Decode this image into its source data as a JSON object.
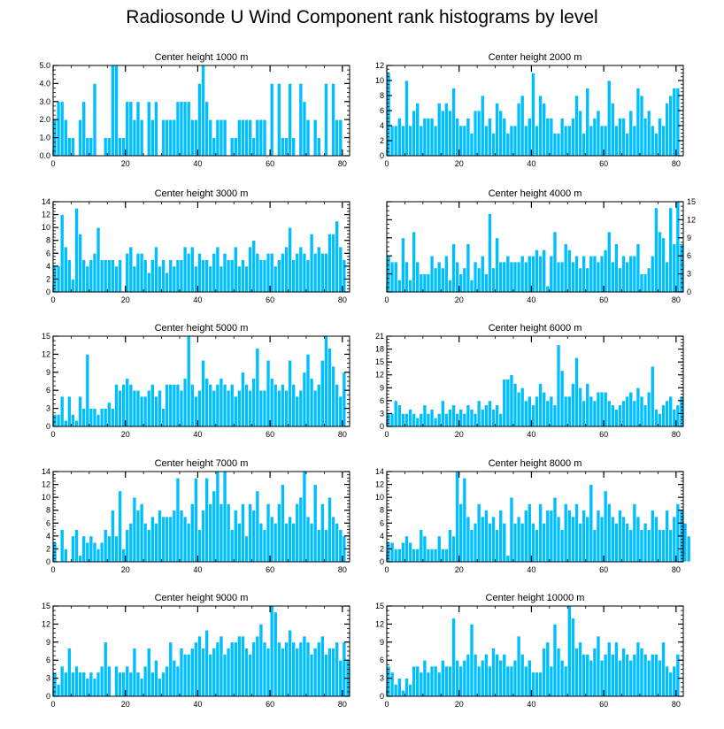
{
  "title": "Radiosonde U Wind Component rank histograms by level",
  "colors": {
    "bar": "#00bfff",
    "bar_edge": "#ffffff",
    "axis": "#000000"
  },
  "chart_data": [
    {
      "type": "bar",
      "title": "Center height 1000 m",
      "xlim": [
        0,
        82
      ],
      "ylim": [
        0,
        5
      ],
      "xticks": [
        0,
        20,
        40,
        60,
        80
      ],
      "xtick_labels": [
        "0",
        "20",
        "40",
        "60",
        "80"
      ],
      "yticks": [
        0,
        1,
        2,
        3,
        4,
        5
      ],
      "ytick_labels": [
        "0.0",
        "1.0",
        "2.0",
        "3.0",
        "4.0",
        "5.0"
      ],
      "ylabel_side": "left",
      "values": [
        2,
        3,
        3,
        2,
        1,
        1,
        0,
        2,
        3,
        1,
        1,
        4,
        0,
        0,
        1,
        1,
        5,
        5,
        1,
        1,
        3,
        3,
        2,
        3,
        2,
        0,
        3,
        2,
        3,
        0,
        2,
        2,
        2,
        2,
        3,
        3,
        3,
        3,
        2,
        2,
        4,
        5,
        3,
        2,
        1,
        2,
        2,
        2,
        0,
        1,
        1,
        2,
        2,
        2,
        2,
        1,
        2,
        2,
        2,
        0,
        4,
        0,
        4,
        1,
        1,
        4,
        1,
        0,
        4,
        3,
        2,
        0,
        2,
        1,
        0,
        4,
        0,
        4,
        2,
        2
      ]
    },
    {
      "type": "bar",
      "title": "Center height 2000 m",
      "xlim": [
        0,
        82
      ],
      "ylim": [
        0,
        12
      ],
      "xticks": [
        0,
        20,
        40,
        60,
        80
      ],
      "xtick_labels": [
        "0",
        "20",
        "40",
        "60",
        "80"
      ],
      "yticks": [
        0,
        2,
        4,
        6,
        8,
        10,
        12
      ],
      "ytick_labels": [
        "0",
        "2",
        "4",
        "6",
        "8",
        "10",
        "12"
      ],
      "ylabel_side": "left",
      "values": [
        11,
        4,
        4,
        5,
        4,
        10,
        4,
        6,
        7,
        4,
        5,
        5,
        5,
        4,
        7,
        6,
        7,
        6,
        9,
        5,
        4,
        4,
        5,
        3,
        6,
        6,
        8,
        4,
        5,
        3,
        7,
        6,
        5,
        3,
        4,
        4,
        7,
        8,
        4,
        5,
        11,
        4,
        8,
        7,
        5,
        5,
        3,
        3,
        5,
        4,
        4,
        5,
        8,
        6,
        3,
        9,
        4,
        5,
        6,
        4,
        4,
        10,
        7,
        4,
        5,
        5,
        3,
        6,
        4,
        9,
        8,
        5,
        6,
        4,
        3,
        5,
        4,
        7,
        8,
        9,
        9
      ]
    },
    {
      "type": "bar",
      "title": "Center height 3000 m",
      "xlim": [
        0,
        82
      ],
      "ylim": [
        0,
        14
      ],
      "xticks": [
        0,
        20,
        40,
        60,
        80
      ],
      "xtick_labels": [
        "0",
        "20",
        "40",
        "60",
        "80"
      ],
      "yticks": [
        0,
        2,
        4,
        6,
        8,
        10,
        12,
        14
      ],
      "ytick_labels": [
        "0",
        "2",
        "4",
        "6",
        "8",
        "10",
        "12",
        "14"
      ],
      "ylabel_side": "left",
      "values": [
        4,
        4,
        12,
        7,
        5,
        2,
        13,
        9,
        5,
        4,
        5,
        6,
        10,
        5,
        5,
        5,
        5,
        4,
        5,
        0,
        6,
        7,
        4,
        6,
        6,
        5,
        3,
        5,
        7,
        4,
        5,
        3,
        5,
        4,
        5,
        5,
        7,
        6,
        7,
        4,
        6,
        5,
        5,
        4,
        6,
        7,
        4,
        6,
        5,
        5,
        7,
        4,
        5,
        4,
        7,
        8,
        6,
        5,
        5,
        6,
        6,
        4,
        5,
        6,
        7,
        10,
        5,
        6,
        7,
        6,
        5,
        9,
        6,
        7,
        6,
        6,
        9,
        9,
        11,
        7,
        5
      ]
    },
    {
      "type": "bar",
      "title": "Center height 4000 m",
      "xlim": [
        0,
        82
      ],
      "ylim": [
        0,
        15
      ],
      "xticks": [
        0,
        20,
        40,
        60,
        80
      ],
      "xtick_labels": [
        "0",
        "20",
        "40",
        "60",
        "80"
      ],
      "yticks": [
        0,
        3,
        6,
        9,
        12,
        15
      ],
      "ytick_labels": [
        "0",
        "3",
        "6",
        "9",
        "12",
        "15"
      ],
      "ylabel_side": "right",
      "values": [
        6,
        5,
        5,
        2,
        9,
        5,
        2,
        10,
        5,
        3,
        3,
        3,
        6,
        4,
        5,
        4,
        6,
        2,
        8,
        5,
        3,
        4,
        8,
        2,
        5,
        4,
        6,
        3,
        13,
        4,
        9,
        5,
        5,
        6,
        5,
        5,
        5,
        6,
        5,
        6,
        6,
        7,
        6,
        7,
        1,
        6,
        10,
        5,
        5,
        8,
        7,
        5,
        6,
        4,
        6,
        4,
        6,
        6,
        5,
        6,
        7,
        10,
        5,
        8,
        4,
        6,
        5,
        6,
        6,
        8,
        3,
        3,
        4,
        6,
        14,
        10,
        9,
        5,
        14,
        8,
        15,
        8
      ]
    },
    {
      "type": "bar",
      "title": "Center height 5000 m",
      "xlim": [
        0,
        82
      ],
      "ylim": [
        0,
        15
      ],
      "xticks": [
        0,
        20,
        40,
        60,
        80
      ],
      "xtick_labels": [
        "0",
        "20",
        "40",
        "60",
        "80"
      ],
      "yticks": [
        0,
        3,
        6,
        9,
        12,
        15
      ],
      "ytick_labels": [
        "0",
        "3",
        "6",
        "9",
        "12",
        "15"
      ],
      "ylabel_side": "left",
      "values": [
        2,
        2,
        5,
        1,
        5,
        2,
        1,
        5,
        3,
        12,
        3,
        3,
        2,
        3,
        3,
        4,
        3,
        7,
        6,
        7,
        8,
        7,
        6,
        6,
        5,
        5,
        6,
        7,
        5,
        6,
        3,
        7,
        7,
        7,
        7,
        6,
        8,
        15,
        7,
        5,
        6,
        11,
        8,
        7,
        6,
        7,
        8,
        7,
        6,
        7,
        5,
        6,
        9,
        7,
        6,
        8,
        13,
        6,
        6,
        11,
        8,
        7,
        6,
        7,
        6,
        11,
        7,
        5,
        6,
        9,
        12,
        8,
        6,
        7,
        11,
        15,
        13,
        10,
        7,
        5,
        9
      ]
    },
    {
      "type": "bar",
      "title": "Center height 6000 m",
      "xlim": [
        0,
        82
      ],
      "ylim": [
        0,
        21
      ],
      "xticks": [
        0,
        20,
        40,
        60,
        80
      ],
      "xtick_labels": [
        "0",
        "20",
        "40",
        "60",
        "80"
      ],
      "yticks": [
        0,
        3,
        6,
        9,
        12,
        15,
        18,
        21
      ],
      "ytick_labels": [
        "0",
        "3",
        "6",
        "9",
        "12",
        "15",
        "18",
        "21"
      ],
      "ylabel_side": "left",
      "values": [
        3,
        3,
        6,
        5,
        3,
        3,
        4,
        3,
        2,
        3,
        5,
        3,
        4,
        2,
        3,
        6,
        3,
        4,
        5,
        3,
        4,
        3,
        5,
        4,
        3,
        6,
        4,
        5,
        6,
        4,
        5,
        3,
        11,
        11,
        12,
        10,
        8,
        9,
        6,
        7,
        5,
        7,
        10,
        8,
        6,
        7,
        5,
        19,
        13,
        7,
        7,
        10,
        16,
        9,
        6,
        10,
        7,
        6,
        8,
        8,
        8,
        6,
        5,
        4,
        5,
        6,
        7,
        8,
        6,
        9,
        7,
        5,
        8,
        14,
        4,
        3,
        5,
        6,
        7,
        4,
        5,
        7
      ]
    },
    {
      "type": "bar",
      "title": "Center height 7000 m",
      "xlim": [
        0,
        82
      ],
      "ylim": [
        0,
        14
      ],
      "xticks": [
        0,
        20,
        40,
        60,
        80
      ],
      "xtick_labels": [
        "0",
        "20",
        "40",
        "60",
        "80"
      ],
      "yticks": [
        0,
        2,
        4,
        6,
        8,
        10,
        12,
        14
      ],
      "ytick_labels": [
        "0",
        "2",
        "4",
        "6",
        "8",
        "10",
        "12",
        "14"
      ],
      "ylabel_side": "left",
      "values": [
        3,
        0,
        5,
        2,
        0,
        4,
        5,
        1,
        4,
        3,
        4,
        3,
        2,
        3,
        5,
        4,
        8,
        4,
        11,
        2,
        5,
        6,
        10,
        8,
        9,
        6,
        5,
        7,
        6,
        8,
        7,
        7,
        7,
        8,
        13,
        8,
        7,
        6,
        9,
        13,
        5,
        8,
        13,
        9,
        11,
        14,
        9,
        14,
        9,
        5,
        8,
        6,
        9,
        4,
        9,
        8,
        11,
        6,
        5,
        9,
        7,
        6,
        9,
        12,
        6,
        7,
        6,
        9,
        10,
        14,
        7,
        6,
        12,
        5,
        9,
        5,
        10,
        7,
        6,
        5,
        4
      ]
    },
    {
      "type": "bar",
      "title": "Center height 8000 m",
      "xlim": [
        0,
        82
      ],
      "ylim": [
        0,
        14
      ],
      "xticks": [
        0,
        20,
        40,
        60,
        80
      ],
      "xtick_labels": [
        "0",
        "20",
        "40",
        "60",
        "80"
      ],
      "yticks": [
        0,
        2,
        4,
        6,
        8,
        10,
        12,
        14
      ],
      "ytick_labels": [
        "0",
        "2",
        "4",
        "6",
        "8",
        "10",
        "12",
        "14"
      ],
      "ylabel_side": "left",
      "values": [
        3,
        3,
        2,
        2,
        3,
        4,
        3,
        2,
        2,
        5,
        4,
        2,
        2,
        2,
        4,
        2,
        2,
        5,
        4,
        14,
        9,
        13,
        7,
        5,
        6,
        9,
        7,
        8,
        6,
        7,
        5,
        8,
        6,
        1,
        10,
        6,
        7,
        6,
        8,
        9,
        6,
        5,
        9,
        6,
        8,
        8,
        10,
        7,
        5,
        9,
        8,
        7,
        9,
        6,
        8,
        7,
        12,
        5,
        8,
        7,
        11,
        9,
        7,
        6,
        8,
        7,
        6,
        5,
        9,
        7,
        5,
        6,
        5,
        8,
        7,
        5,
        5,
        8,
        5,
        7,
        9,
        8,
        6,
        4
      ]
    },
    {
      "type": "bar",
      "title": "Center height 9000 m",
      "xlim": [
        0,
        82
      ],
      "ylim": [
        0,
        15
      ],
      "xticks": [
        0,
        20,
        40,
        60,
        80
      ],
      "xtick_labels": [
        "0",
        "20",
        "40",
        "60",
        "80"
      ],
      "yticks": [
        0,
        3,
        6,
        9,
        12,
        15
      ],
      "ytick_labels": [
        "0",
        "3",
        "6",
        "9",
        "12",
        "15"
      ],
      "ylabel_side": "left",
      "values": [
        4,
        2,
        5,
        4,
        8,
        4,
        5,
        4,
        4,
        3,
        4,
        3,
        4,
        5,
        9,
        5,
        0,
        5,
        4,
        4,
        5,
        4,
        8,
        4,
        3,
        5,
        8,
        4,
        6,
        3,
        4,
        5,
        9,
        6,
        5,
        8,
        7,
        7,
        8,
        9,
        10,
        8,
        11,
        7,
        8,
        9,
        10,
        7,
        8,
        9,
        9,
        10,
        10,
        8,
        7,
        9,
        10,
        12,
        9,
        8,
        15,
        14,
        9,
        8,
        9,
        11,
        9,
        8,
        9,
        10,
        9,
        7,
        8,
        9,
        10,
        7,
        8,
        8,
        9,
        6,
        9,
        6
      ]
    },
    {
      "type": "bar",
      "title": "Center height 10000 m",
      "xlim": [
        0,
        82
      ],
      "ylim": [
        0,
        15
      ],
      "xticks": [
        0,
        20,
        40,
        60,
        80
      ],
      "xtick_labels": [
        "0",
        "20",
        "40",
        "60",
        "80"
      ],
      "yticks": [
        0,
        3,
        6,
        9,
        12,
        15
      ],
      "ytick_labels": [
        "0",
        "3",
        "6",
        "9",
        "12",
        "15"
      ],
      "ylabel_side": "left",
      "values": [
        5,
        4,
        2,
        3,
        1,
        3,
        2,
        5,
        5,
        4,
        6,
        4,
        5,
        5,
        4,
        6,
        5,
        5,
        13,
        6,
        5,
        6,
        7,
        12,
        7,
        5,
        6,
        7,
        5,
        8,
        7,
        6,
        7,
        5,
        5,
        6,
        10,
        7,
        5,
        6,
        4,
        4,
        4,
        8,
        9,
        5,
        12,
        8,
        6,
        5,
        15,
        13,
        8,
        9,
        7,
        7,
        6,
        8,
        10,
        6,
        7,
        9,
        7,
        9,
        6,
        8,
        7,
        6,
        7,
        9,
        8,
        7,
        6,
        7,
        7,
        6,
        9,
        5,
        4,
        5,
        7
      ]
    }
  ]
}
